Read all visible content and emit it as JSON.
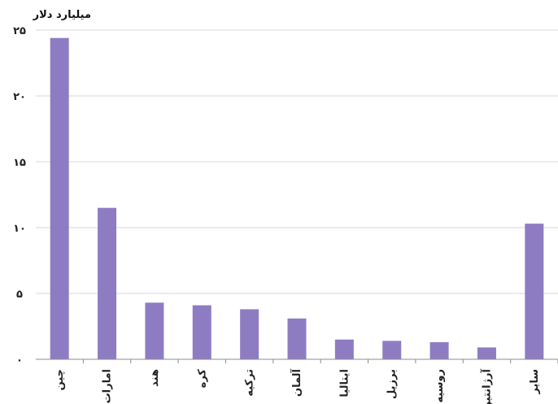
{
  "chart_data": {
    "type": "bar",
    "ylabel": "میلیارد دلار",
    "ylim": [
      0,
      25
    ],
    "y_ticks": [
      "۰",
      "۵",
      "۱۰",
      "۱۵",
      "۲۰",
      "۲۵"
    ],
    "categories": [
      "چین",
      "امارات",
      "هند",
      "کره",
      "ترکیه",
      "آلمان",
      "ایتالیا",
      "برزیل",
      "روسیه",
      "آرژانتین",
      "سایر"
    ],
    "values": [
      24.4,
      11.5,
      4.3,
      4.1,
      3.8,
      3.1,
      1.5,
      1.4,
      1.3,
      0.9,
      10.3
    ],
    "bar_color": "#8e7cc3",
    "grid": true
  }
}
